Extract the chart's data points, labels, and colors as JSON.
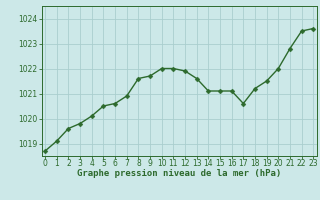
{
  "x": [
    0,
    1,
    2,
    3,
    4,
    5,
    6,
    7,
    8,
    9,
    10,
    11,
    12,
    13,
    14,
    15,
    16,
    17,
    18,
    19,
    20,
    21,
    22,
    23
  ],
  "y": [
    1018.7,
    1019.1,
    1019.6,
    1019.8,
    1020.1,
    1020.5,
    1020.6,
    1020.9,
    1021.6,
    1021.7,
    1022.0,
    1022.0,
    1021.9,
    1021.6,
    1021.1,
    1021.1,
    1021.1,
    1020.6,
    1021.2,
    1021.5,
    1022.0,
    1022.8,
    1023.5,
    1023.6
  ],
  "line_color": "#2d6a2d",
  "marker_color": "#2d6a2d",
  "bg_color": "#cce8e8",
  "grid_color": "#aacece",
  "axis_label_color": "#2d6a2d",
  "tick_label_color": "#2d6a2d",
  "xlabel": "Graphe pression niveau de la mer (hPa)",
  "ylim": [
    1018.5,
    1024.5
  ],
  "yticks": [
    1019,
    1020,
    1021,
    1022,
    1023,
    1024
  ],
  "xticks": [
    0,
    1,
    2,
    3,
    4,
    5,
    6,
    7,
    8,
    9,
    10,
    11,
    12,
    13,
    14,
    15,
    16,
    17,
    18,
    19,
    20,
    21,
    22,
    23
  ],
  "xlabel_fontsize": 6.5,
  "tick_fontsize": 5.5,
  "line_width": 1.0,
  "marker_size": 2.5
}
